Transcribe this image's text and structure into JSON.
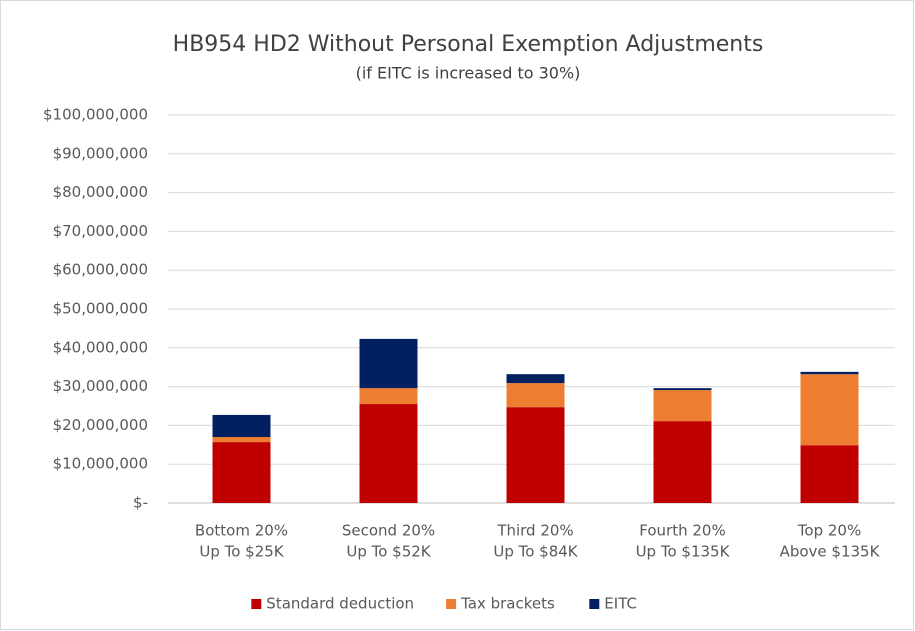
{
  "chart_data": {
    "type": "stacked_bar",
    "title": "HB954 HD2 Without Personal Exemption Adjustments",
    "subtitle": "(if EITC is increased to 30%)",
    "categories": [
      [
        "Bottom 20%",
        "Up To $25K"
      ],
      [
        "Second 20%",
        "Up To $52K"
      ],
      [
        "Third 20%",
        "Up To $84K"
      ],
      [
        "Fourth 20%",
        "Up To $135K"
      ],
      [
        "Top 20%",
        "Above $135K"
      ]
    ],
    "series": [
      {
        "name": "Standard deduction",
        "color": "#c00000",
        "values": [
          15700000,
          25500000,
          24700000,
          21100000,
          14900000
        ]
      },
      {
        "name": "Tax brackets",
        "color": "#ed7d31",
        "values": [
          1300000,
          4100000,
          6200000,
          8000000,
          18300000
        ]
      },
      {
        "name": "EITC",
        "color": "#002060",
        "values": [
          5700000,
          12700000,
          2300000,
          500000,
          600000
        ]
      }
    ],
    "ylim": [
      0,
      100000000
    ],
    "yticks": [
      {
        "value": 0,
        "label": "$-"
      },
      {
        "value": 10000000,
        "label": "$10,000,000"
      },
      {
        "value": 20000000,
        "label": "$20,000,000"
      },
      {
        "value": 30000000,
        "label": "$30,000,000"
      },
      {
        "value": 40000000,
        "label": "$40,000,000"
      },
      {
        "value": 50000000,
        "label": "$50,000,000"
      },
      {
        "value": 60000000,
        "label": "$60,000,000"
      },
      {
        "value": 70000000,
        "label": "$70,000,000"
      },
      {
        "value": 80000000,
        "label": "$80,000,000"
      },
      {
        "value": 90000000,
        "label": "$90,000,000"
      },
      {
        "value": 100000000,
        "label": "$100,000,000"
      }
    ],
    "grid": true,
    "legend": "bottom"
  }
}
